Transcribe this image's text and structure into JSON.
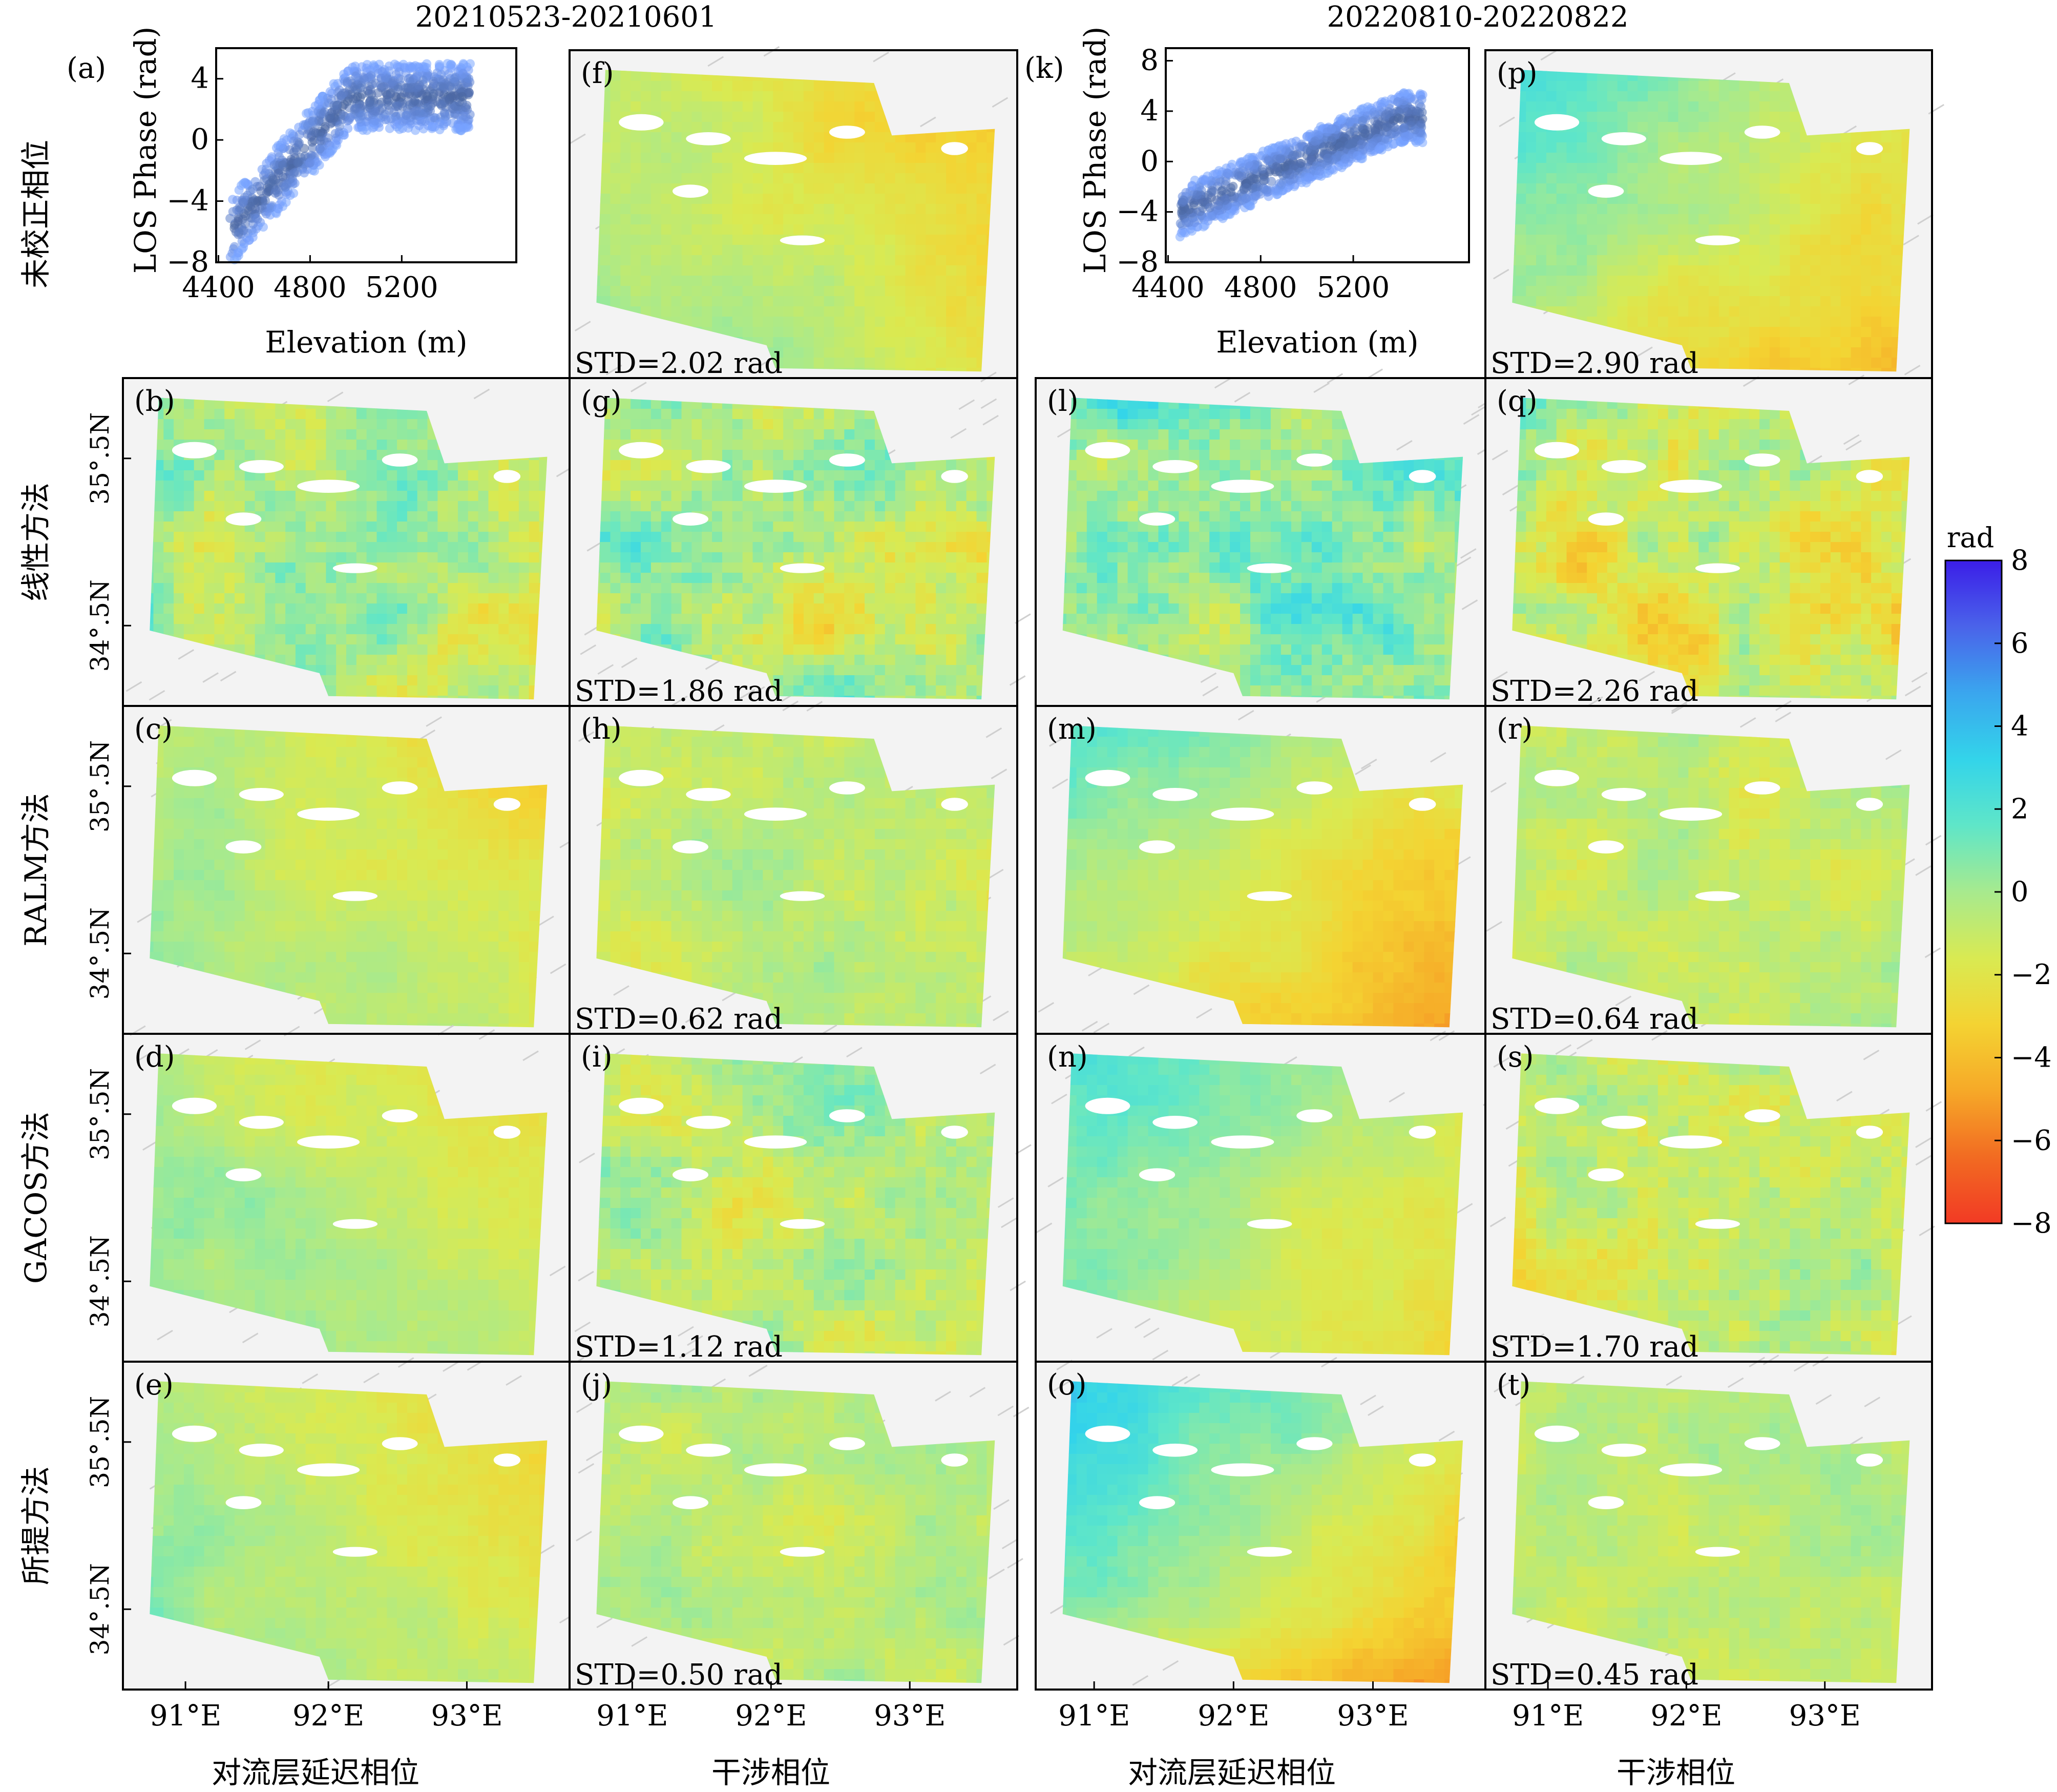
{
  "figure": {
    "column_titles": [
      "20210523-20210601",
      "20220810-20220822"
    ],
    "row_labels": [
      "未校正相位",
      "线性方法",
      "RALM方法",
      "GACOS方法",
      "所提方法"
    ],
    "bottom_labels": [
      "对流层延迟相位",
      "干涉相位",
      "对流层延迟相位",
      "干涉相位"
    ],
    "lon_ticks": [
      "91°E",
      "92°E",
      "93°E"
    ],
    "lat_ticks": [
      "35°.5N",
      "34°.5N"
    ],
    "colorbar": {
      "label": "rad",
      "ticks": [
        "8",
        "6",
        "4",
        "2",
        "0",
        "−2",
        "−4",
        "−6",
        "−8"
      ],
      "min": -8,
      "max": 8,
      "colors": [
        "#3b1ee8",
        "#4a63ea",
        "#3aa6ee",
        "#33d4ea",
        "#5fe6c8",
        "#a7ea8e",
        "#d9ea52",
        "#f4d332",
        "#f6a928",
        "#f26b22",
        "#f23a24"
      ]
    }
  },
  "panels": [
    {
      "letter": "(a)",
      "type": "scatter",
      "xlabel": "Elevation (m)",
      "ylabel": "LOS Phase (rad)",
      "xticks": [
        "4400",
        "4800",
        "5200"
      ],
      "yticks": [
        "4",
        "0",
        "−4",
        "−8"
      ],
      "xlim": [
        4390,
        5700
      ],
      "ylim": [
        -8,
        6
      ]
    },
    {
      "letter": "(f)",
      "type": "map",
      "std": "STD=2.02 rad",
      "mean": -1.5,
      "gradient": [
        -1.0,
        -0.6
      ],
      "amp": 3.0
    },
    {
      "letter": "(k)",
      "type": "scatter",
      "xlabel": "Elevation (m)",
      "ylabel": "LOS Phase (rad)",
      "xticks": [
        "4400",
        "4800",
        "5200"
      ],
      "yticks": [
        "8",
        "4",
        "0",
        "−4",
        "−8"
      ],
      "xlim": [
        4390,
        5700
      ],
      "ylim": [
        -8,
        9
      ]
    },
    {
      "letter": "(p)",
      "type": "map",
      "std": "STD=2.90 rad",
      "mean": -1.0,
      "gradient": [
        -1.0,
        1.0
      ],
      "amp": 3.6
    },
    {
      "letter": "(b)",
      "type": "map",
      "mean": -0.5,
      "gradient": [
        -0.8,
        0.2
      ],
      "amp": 1.5,
      "noise": 2.4
    },
    {
      "letter": "(g)",
      "type": "map",
      "std": "STD=1.86 rad",
      "mean": -0.5,
      "gradient": [
        -0.5,
        0.3
      ],
      "amp": 1.5,
      "noise": 2.6
    },
    {
      "letter": "(l)",
      "type": "map",
      "mean": 0.8,
      "gradient": [
        -0.5,
        0.5
      ],
      "amp": 1.3,
      "noise": 2.6
    },
    {
      "letter": "(q)",
      "type": "map",
      "std": "STD=2.26 rad",
      "mean": -1.5,
      "gradient": [
        -0.5,
        1.0
      ],
      "amp": 2.2,
      "noise": 2.6
    },
    {
      "letter": "(c)",
      "type": "map",
      "mean": -1.2,
      "gradient": [
        -1.0,
        -0.6
      ],
      "amp": 3.0
    },
    {
      "letter": "(h)",
      "type": "map",
      "std": "STD=0.62 rad",
      "mean": -0.8,
      "gradient": [
        0,
        0
      ],
      "amp": 0.3,
      "noise": 1.3
    },
    {
      "letter": "(m)",
      "type": "map",
      "mean": -1.5,
      "gradient": [
        -1.0,
        1.0
      ],
      "amp": 3.8
    },
    {
      "letter": "(r)",
      "type": "map",
      "std": "STD=0.64 rad",
      "mean": -0.9,
      "gradient": [
        0,
        0
      ],
      "amp": 0.3,
      "noise": 1.3
    },
    {
      "letter": "(d)",
      "type": "map",
      "mean": -0.9,
      "gradient": [
        -1.0,
        -0.6
      ],
      "amp": 2.7
    },
    {
      "letter": "(i)",
      "type": "map",
      "std": "STD=1.12 rad",
      "mean": -0.5,
      "gradient": [
        -0.3,
        0.1
      ],
      "amp": 0.8,
      "noise": 2.0
    },
    {
      "letter": "(n)",
      "type": "map",
      "mean": -0.5,
      "gradient": [
        -1.0,
        0.6
      ],
      "amp": 3.5
    },
    {
      "letter": "(s)",
      "type": "map",
      "std": "STD=1.70 rad",
      "mean": -1.2,
      "gradient": [
        -0.3,
        0.6
      ],
      "amp": 1.8,
      "noise": 2.0
    },
    {
      "letter": "(e)",
      "type": "map",
      "mean": -1.0,
      "gradient": [
        -1.0,
        -0.6
      ],
      "amp": 3.0
    },
    {
      "letter": "(j)",
      "type": "map",
      "std": "STD=0.50 rad",
      "mean": -0.7,
      "gradient": [
        0,
        0
      ],
      "amp": 0.2,
      "noise": 1.2
    },
    {
      "letter": "(o)",
      "type": "map",
      "mean": -0.5,
      "gradient": [
        -1.0,
        1.0
      ],
      "amp": 4.8
    },
    {
      "letter": "(t)",
      "type": "map",
      "std": "STD=0.45 rad",
      "mean": -0.7,
      "gradient": [
        0,
        0
      ],
      "amp": 0.2,
      "noise": 1.1
    }
  ]
}
